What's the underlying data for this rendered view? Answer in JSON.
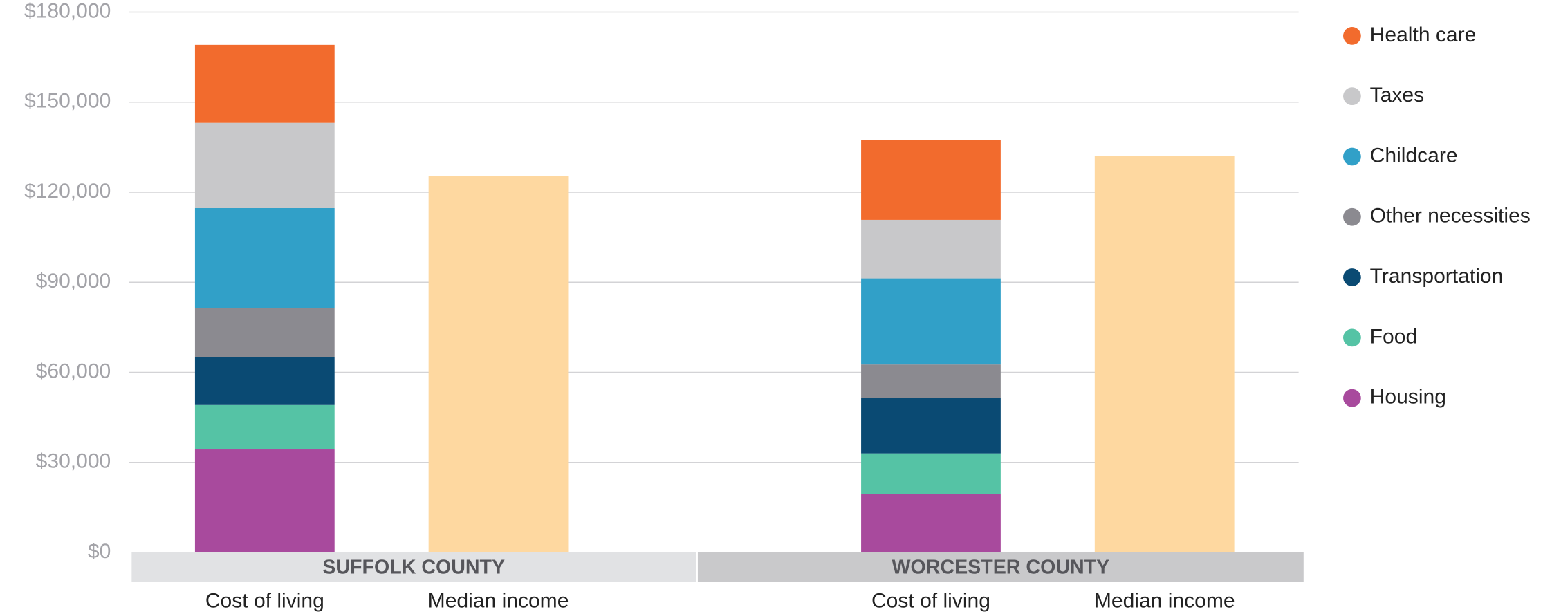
{
  "chart_data": {
    "type": "stacked_bar",
    "groups": [
      "SUFFOLK COUNTY",
      "WORCESTER COUNTY"
    ],
    "bar_labels": [
      "Cost of living",
      "Median income"
    ],
    "series": [
      {
        "name": "Housing",
        "color": "#a84a9d",
        "values": [
          34300,
          19500
        ]
      },
      {
        "name": "Food",
        "color": "#55c3a5",
        "values": [
          14800,
          13500
        ]
      },
      {
        "name": "Transportation",
        "color": "#0a4a73",
        "values": [
          15900,
          18400
        ]
      },
      {
        "name": "Other necessities",
        "color": "#8b8a90",
        "values": [
          16400,
          11200
        ]
      },
      {
        "name": "Childcare",
        "color": "#31a0c8",
        "values": [
          33300,
          28700
        ]
      },
      {
        "name": "Taxes",
        "color": "#c8c8ca",
        "values": [
          28400,
          19500
        ]
      },
      {
        "name": "Health care",
        "color": "#f26b2d",
        "values": [
          26000,
          26700
        ]
      }
    ],
    "income": {
      "color": "#fed8a0",
      "values": [
        125300,
        132200
      ]
    },
    "ylim": [
      0,
      180000
    ],
    "yticks": [
      {
        "value": 0,
        "label": "$0"
      },
      {
        "value": 30000,
        "label": "$30,000"
      },
      {
        "value": 60000,
        "label": "$60,000"
      },
      {
        "value": 90000,
        "label": "$90,000"
      },
      {
        "value": 120000,
        "label": "$120,000"
      },
      {
        "value": 150000,
        "label": "$150,000"
      },
      {
        "value": 180000,
        "label": "$180,000"
      }
    ],
    "grid": true
  }
}
